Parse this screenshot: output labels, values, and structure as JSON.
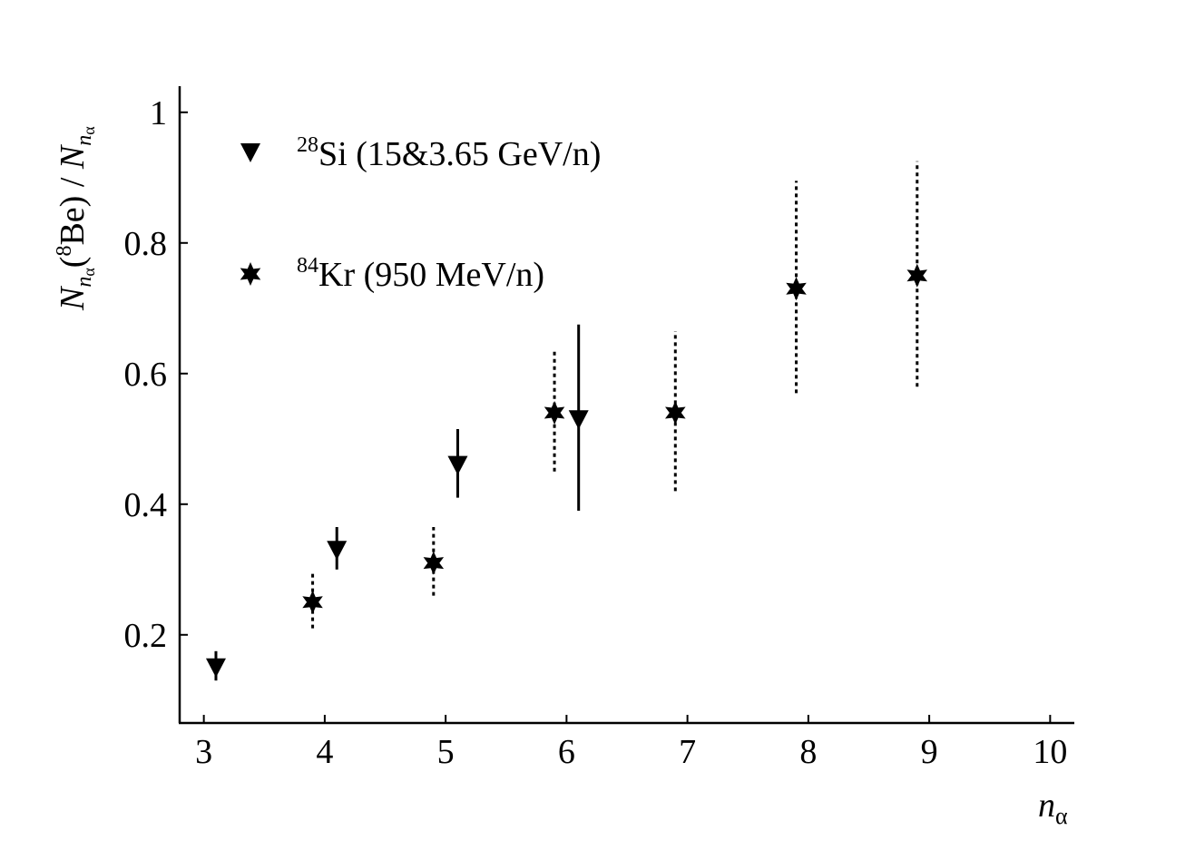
{
  "chart_data": {
    "type": "scatter",
    "xlabel": "nα",
    "ylabel": "Nnα(8Be) / Nnα",
    "xlim": [
      2.8,
      10.2
    ],
    "ylim": [
      0.065,
      1.04
    ],
    "xticks": [
      3,
      4,
      5,
      6,
      7,
      8,
      9,
      10
    ],
    "yticks": [
      0.2,
      0.4,
      0.6,
      0.8,
      1
    ],
    "ytick_labels": [
      "0.2",
      "0.4",
      "0.6",
      "0.8",
      "1"
    ],
    "legend_position": "top-left",
    "grid": false,
    "series": [
      {
        "name": "28Si (15&3.65 GeV/n)",
        "marker": "triangle-down",
        "error_style": "solid",
        "points": [
          {
            "x": 3.1,
            "y": 0.15,
            "ylo": 0.13,
            "yhi": 0.175
          },
          {
            "x": 4.1,
            "y": 0.33,
            "ylo": 0.3,
            "yhi": 0.365
          },
          {
            "x": 5.1,
            "y": 0.46,
            "ylo": 0.41,
            "yhi": 0.515
          },
          {
            "x": 6.1,
            "y": 0.53,
            "ylo": 0.39,
            "yhi": 0.675
          }
        ]
      },
      {
        "name": "84Kr (950 MeV/n)",
        "marker": "star",
        "error_style": "dotted",
        "points": [
          {
            "x": 3.9,
            "y": 0.25,
            "ylo": 0.21,
            "yhi": 0.295
          },
          {
            "x": 4.9,
            "y": 0.31,
            "ylo": 0.26,
            "yhi": 0.365
          },
          {
            "x": 5.9,
            "y": 0.54,
            "ylo": 0.45,
            "yhi": 0.635
          },
          {
            "x": 6.9,
            "y": 0.54,
            "ylo": 0.42,
            "yhi": 0.665
          },
          {
            "x": 7.9,
            "y": 0.73,
            "ylo": 0.57,
            "yhi": 0.895
          },
          {
            "x": 8.9,
            "y": 0.75,
            "ylo": 0.58,
            "yhi": 0.925
          }
        ]
      }
    ],
    "legend": [
      {
        "sup": "28",
        "base": "Si (15&3.65 GeV/n)"
      },
      {
        "sup": "84",
        "base": "Kr (950 MeV/n)"
      }
    ],
    "axis_text": {
      "x_main": "n",
      "x_sub": "α",
      "y_n": "N",
      "y_sub_n": "n",
      "y_sub_alpha": "α",
      "y_open": "(",
      "y_sup": "8",
      "y_be": "Be",
      "y_close": ")",
      "y_slash": " / "
    }
  }
}
